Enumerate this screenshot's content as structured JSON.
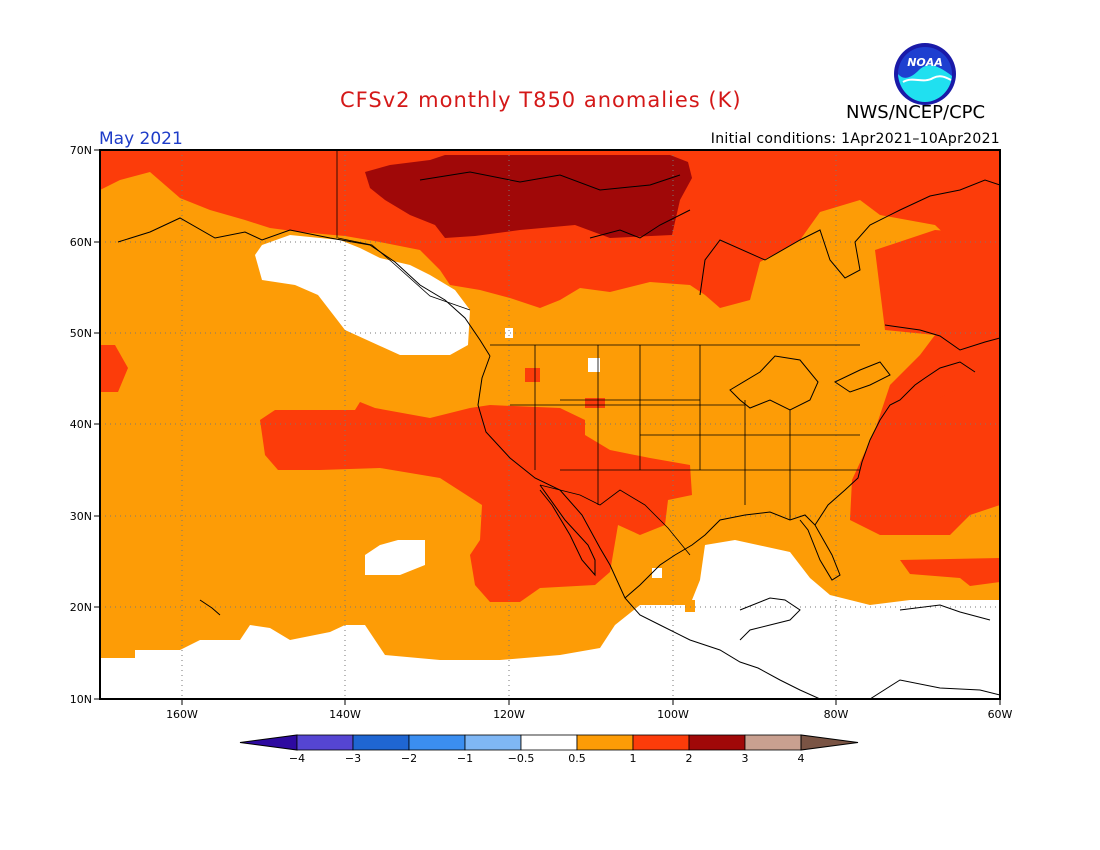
{
  "header": {
    "title": "CFSv2 monthly T850 anomalies (K)",
    "agency": "NWS/NCEP/CPC",
    "logo_text": "NOAA",
    "valid_month": "May 2021",
    "initial_conditions": "Initial conditions: 1Apr2021–10Apr2021"
  },
  "map": {
    "lon_range": [
      -170,
      -60
    ],
    "lat_range": [
      10,
      70
    ],
    "lon_labels": [
      "160W",
      "140W",
      "120W",
      "100W",
      "80W",
      "60W"
    ],
    "lat_labels": [
      "70N",
      "60N",
      "50N",
      "40N",
      "30N",
      "20N",
      "10N"
    ],
    "background_color": "#fd9c06"
  },
  "legend": {
    "ticks": [
      "−4",
      "−3",
      "−2",
      "−1",
      "−0.5",
      "0.5",
      "1",
      "2",
      "3",
      "4"
    ],
    "colors": [
      "#2e0aa0",
      "#5545d2",
      "#1f66d2",
      "#3b8ef0",
      "#7fb7f5",
      "#ffffff",
      "#fd9c06",
      "#fc3c0a",
      "#a00808",
      "#c9a090",
      "#7a5444"
    ]
  }
}
